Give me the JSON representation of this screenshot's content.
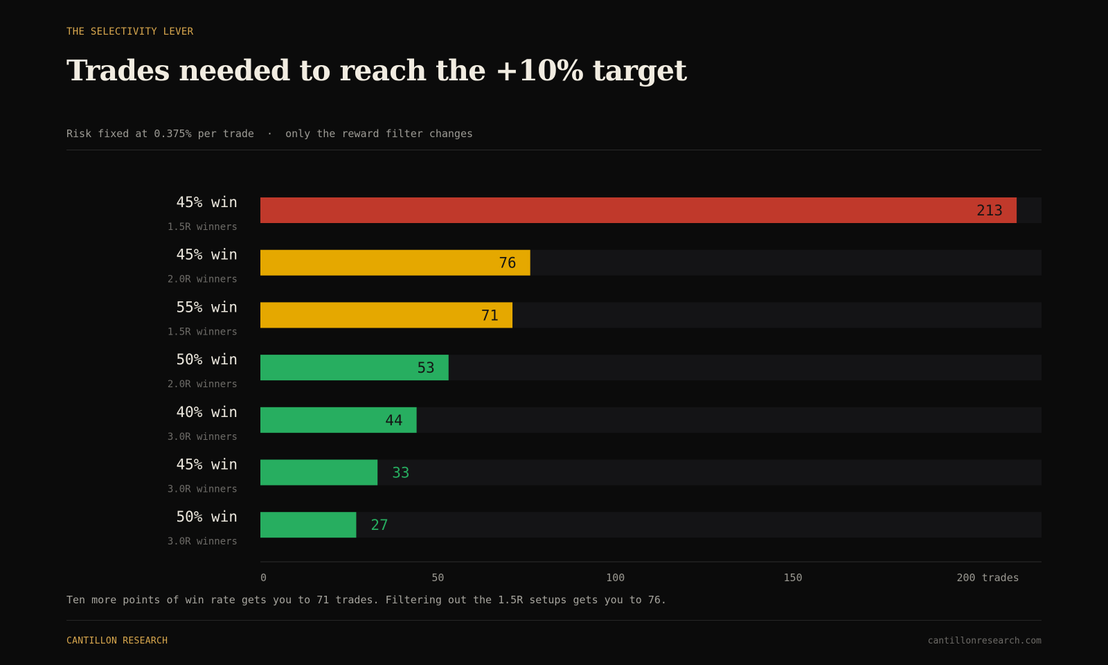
{
  "header": {
    "kicker": "THE SELECTIVITY LEVER",
    "title": "Trades needed to reach the +10% target",
    "subtitle": "Risk fixed at 0.375% per trade  ·  only the reward filter changes"
  },
  "chart_data": {
    "type": "bar",
    "orientation": "horizontal",
    "title": "Trades needed to reach the +10% target",
    "xlim": [
      0,
      220
    ],
    "x_ticks": [
      0,
      50,
      100,
      150,
      200
    ],
    "x_tick_labels": [
      "0",
      "50",
      "100",
      "150",
      "200 trades"
    ],
    "rows": [
      {
        "label": "45% win",
        "sublabel": "1.5R winners",
        "value": 213,
        "color": "#c0392b"
      },
      {
        "label": "45% win",
        "sublabel": "2.0R winners",
        "value": 76,
        "color": "#e5a800"
      },
      {
        "label": "55% win",
        "sublabel": "1.5R winners",
        "value": 71,
        "color": "#e5a800"
      },
      {
        "label": "50% win",
        "sublabel": "2.0R winners",
        "value": 53,
        "color": "#27ae60"
      },
      {
        "label": "40% win",
        "sublabel": "3.0R winners",
        "value": 44,
        "color": "#27ae60"
      },
      {
        "label": "45% win",
        "sublabel": "3.0R winners",
        "value": 33,
        "color": "#27ae60"
      },
      {
        "label": "50% win",
        "sublabel": "3.0R winners",
        "value": 27,
        "color": "#27ae60"
      }
    ],
    "track_color": "#141416"
  },
  "footnote": "Ten more points of win rate gets you to 71 trades. Filtering out the 1.5R setups gets you to 76.",
  "footer": {
    "brand": "CANTILLON RESEARCH",
    "url": "cantillonresearch.com"
  }
}
